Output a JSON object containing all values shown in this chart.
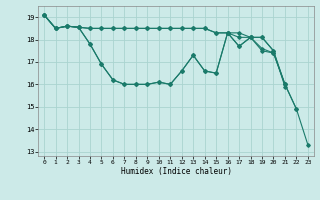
{
  "background_color": "#cceae8",
  "grid_color": "#aad4d0",
  "line_color": "#1a7a6a",
  "xlabel": "Humidex (Indice chaleur)",
  "xlim": [
    -0.5,
    23.5
  ],
  "ylim": [
    12.8,
    19.5
  ],
  "yticks": [
    13,
    14,
    15,
    16,
    17,
    18,
    19
  ],
  "xticks": [
    0,
    1,
    2,
    3,
    4,
    5,
    6,
    7,
    8,
    9,
    10,
    11,
    12,
    13,
    14,
    15,
    16,
    17,
    18,
    19,
    20,
    21,
    22,
    23
  ],
  "series": [
    {
      "x": [
        0,
        1,
        2,
        3,
        4,
        5,
        6,
        7,
        8,
        9,
        10,
        11,
        12,
        13,
        14,
        15,
        16,
        17,
        18,
        19,
        20,
        21
      ],
      "y": [
        19.1,
        18.5,
        18.6,
        18.55,
        18.5,
        18.5,
        18.5,
        18.5,
        18.5,
        18.5,
        18.5,
        18.5,
        18.5,
        18.5,
        18.5,
        18.3,
        18.3,
        18.3,
        18.1,
        18.1,
        17.5,
        15.9
      ]
    },
    {
      "x": [
        0,
        1,
        2,
        3,
        4,
        5,
        6,
        7,
        8,
        9,
        10,
        11,
        12,
        13,
        14,
        15,
        16,
        17,
        18,
        19,
        20,
        21
      ],
      "y": [
        19.1,
        18.5,
        18.6,
        18.55,
        18.5,
        18.5,
        18.5,
        18.5,
        18.5,
        18.5,
        18.5,
        18.5,
        18.5,
        18.5,
        18.5,
        18.3,
        18.3,
        18.1,
        18.1,
        18.1,
        17.5,
        16.0
      ]
    },
    {
      "x": [
        0,
        1,
        2,
        3,
        4,
        5,
        6,
        7,
        8,
        9,
        10,
        11,
        12,
        13,
        14,
        15,
        16,
        17,
        18,
        19,
        20,
        21,
        22
      ],
      "y": [
        19.1,
        18.5,
        18.6,
        18.55,
        17.8,
        16.9,
        16.2,
        16.0,
        16.0,
        16.0,
        16.1,
        16.0,
        16.6,
        17.3,
        16.6,
        16.5,
        18.3,
        17.7,
        18.1,
        17.6,
        17.4,
        16.0,
        14.9
      ]
    },
    {
      "x": [
        0,
        1,
        2,
        3,
        4,
        5,
        6,
        7,
        8,
        9,
        10,
        11,
        12,
        13,
        14,
        15,
        16,
        17,
        18,
        19,
        20,
        21,
        22,
        23
      ],
      "y": [
        19.1,
        18.5,
        18.6,
        18.55,
        17.8,
        16.9,
        16.2,
        16.0,
        16.0,
        16.0,
        16.1,
        16.0,
        16.6,
        17.3,
        16.6,
        16.5,
        18.3,
        17.7,
        18.1,
        17.5,
        17.4,
        16.0,
        14.9,
        13.3
      ]
    }
  ]
}
